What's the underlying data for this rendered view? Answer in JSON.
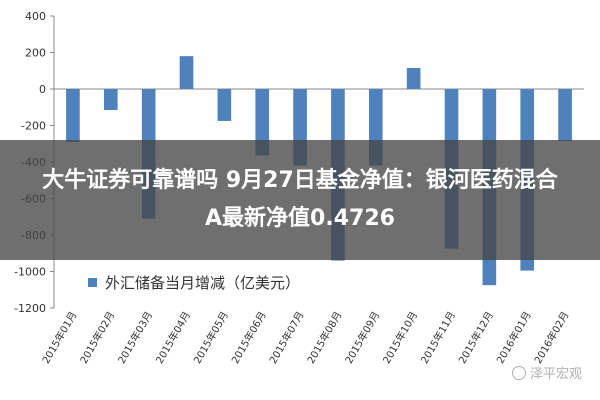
{
  "chart_data": {
    "type": "bar",
    "categories": [
      "2015年01月",
      "2015年02月",
      "2015年03月",
      "2015年04月",
      "2015年05月",
      "2015年06月",
      "2015年07月",
      "2015年08月",
      "2015年09月",
      "2015年10月",
      "2015年11月",
      "2015年12月",
      "2016年01月",
      "2016年02月"
    ],
    "values": [
      -290,
      -115,
      -710,
      180,
      -175,
      -365,
      -420,
      -940,
      -420,
      115,
      -875,
      -1075,
      -995,
      -285
    ],
    "ylim": [
      -1200,
      400
    ],
    "yticks": [
      -1200,
      -1000,
      -800,
      -600,
      -400,
      -200,
      0,
      200,
      400
    ],
    "legend": "外汇储备当月增减（亿美元）",
    "legend_position": "bottom-left",
    "grid": false,
    "bar_color": "#4f81bd"
  },
  "overlay": {
    "line1": "大牛证券可靠谱吗 9月27日基金净值：银河医药混合",
    "line2": "A最新净值0.4726"
  },
  "watermark": "泽平宏观"
}
